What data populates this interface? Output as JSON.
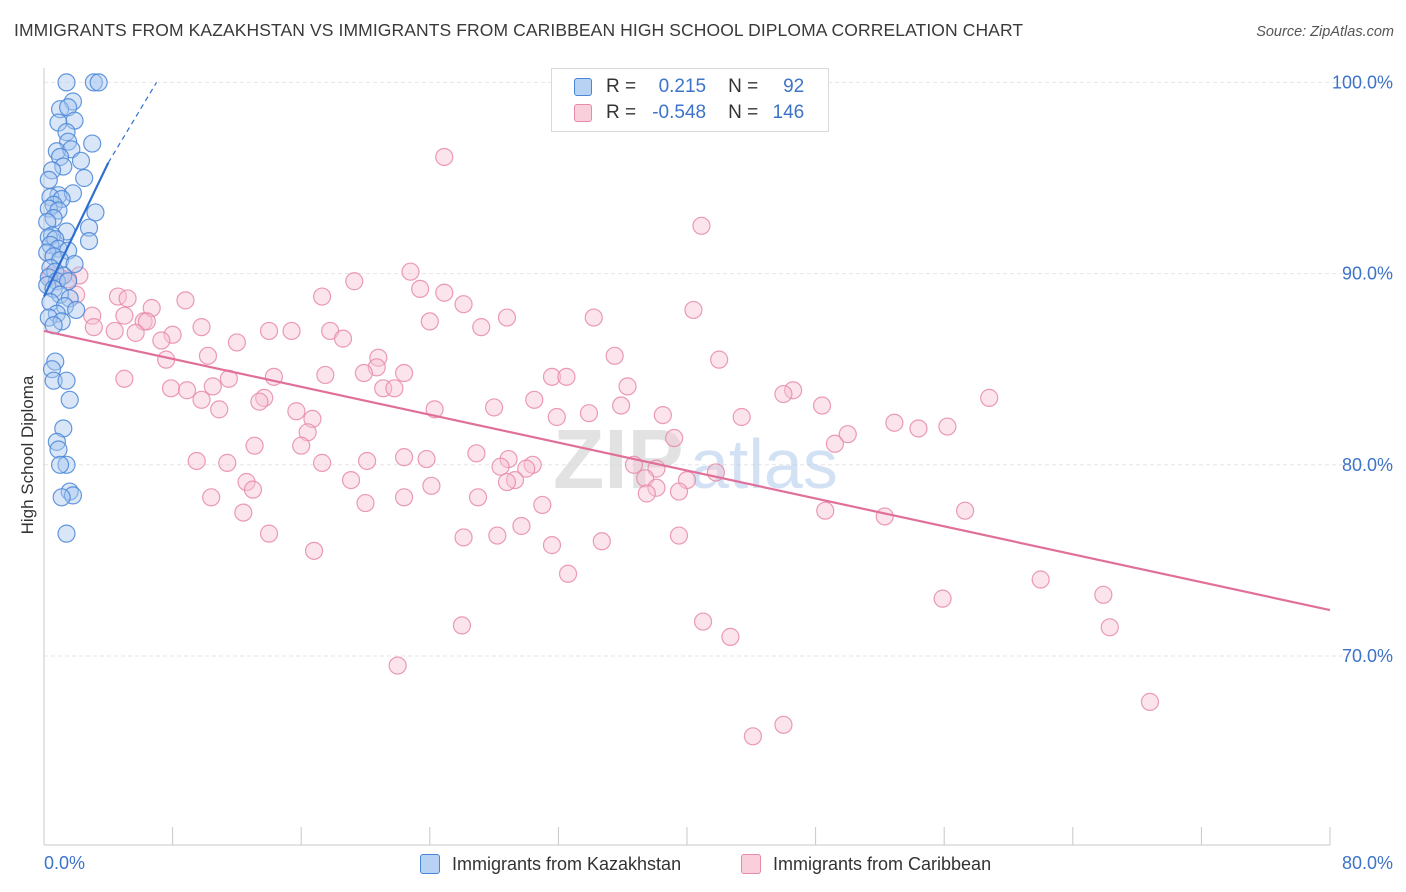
{
  "header": {
    "title": "IMMIGRANTS FROM KAZAKHSTAN VS IMMIGRANTS FROM CARIBBEAN HIGH SCHOOL DIPLOMA CORRELATION CHART",
    "source": "Source: ZipAtlas.com"
  },
  "legend": {
    "rows": [
      {
        "r_label": "R =",
        "r_value": "0.215",
        "n_label": "N =",
        "n_value": "92"
      },
      {
        "r_label": "R =",
        "r_value": "-0.548",
        "n_label": "N =",
        "n_value": "146"
      }
    ]
  },
  "watermark": {
    "zip": "ZIP",
    "atlas": "atlas"
  },
  "colors": {
    "blue_fill": "#a9c8ef",
    "blue_stroke": "#4a86d8",
    "blue_line": "#2f6fd0",
    "pink_fill": "#f7c4d4",
    "pink_stroke": "#e88aa8",
    "pink_line": "#e0709a",
    "tick_label": "#3d73c9",
    "grid": "#e6e6e6"
  },
  "chart_data": {
    "type": "scatter",
    "title": "IMMIGRANTS FROM KAZAKHSTAN VS IMMIGRANTS FROM CARIBBEAN HIGH SCHOOL DIPLOMA CORRELATION CHART",
    "xlabel": "",
    "ylabel": "High School Diploma",
    "xlim": [
      0,
      80
    ],
    "ylim": [
      60,
      100
    ],
    "x_tick_labels": [
      "0.0%",
      "80.0%"
    ],
    "y_ticks": [
      70,
      80,
      90,
      100
    ],
    "y_tick_labels": [
      "70.0%",
      "80.0%",
      "90.0%",
      "100.0%"
    ],
    "grid": true,
    "legend_position": "bottom",
    "series": [
      {
        "name": "Immigrants from Kazakhstan",
        "color": "#4a86d8",
        "trend": {
          "x": [
            0.0,
            4.0
          ],
          "y": [
            88.8,
            95.8
          ],
          "dashed_extension": {
            "x": [
              4.0,
              7.0
            ],
            "y": [
              95.8,
              100.0
            ]
          }
        },
        "points": [
          [
            1.4,
            100.0
          ],
          [
            3.1,
            100.0
          ],
          [
            3.4,
            100.0
          ],
          [
            1.8,
            99.0
          ],
          [
            1.0,
            98.6
          ],
          [
            1.5,
            98.7
          ],
          [
            0.9,
            97.9
          ],
          [
            1.9,
            98.0
          ],
          [
            1.4,
            97.4
          ],
          [
            1.5,
            96.9
          ],
          [
            3.0,
            96.8
          ],
          [
            0.8,
            96.4
          ],
          [
            1.7,
            96.5
          ],
          [
            1.0,
            96.1
          ],
          [
            2.3,
            95.9
          ],
          [
            1.2,
            95.6
          ],
          [
            0.5,
            95.4
          ],
          [
            2.5,
            95.0
          ],
          [
            0.3,
            94.9
          ],
          [
            0.9,
            94.1
          ],
          [
            1.8,
            94.2
          ],
          [
            0.4,
            94.0
          ],
          [
            1.1,
            93.9
          ],
          [
            0.6,
            93.6
          ],
          [
            0.3,
            93.4
          ],
          [
            0.9,
            93.3
          ],
          [
            3.2,
            93.2
          ],
          [
            0.6,
            92.9
          ],
          [
            0.2,
            92.7
          ],
          [
            2.8,
            92.4
          ],
          [
            1.4,
            92.2
          ],
          [
            0.5,
            92.0
          ],
          [
            0.3,
            91.9
          ],
          [
            0.7,
            91.8
          ],
          [
            2.8,
            91.7
          ],
          [
            0.4,
            91.5
          ],
          [
            0.9,
            91.3
          ],
          [
            1.5,
            91.2
          ],
          [
            0.2,
            91.1
          ],
          [
            0.6,
            90.9
          ],
          [
            1.0,
            90.7
          ],
          [
            1.9,
            90.5
          ],
          [
            0.4,
            90.3
          ],
          [
            0.7,
            90.1
          ],
          [
            1.2,
            89.9
          ],
          [
            0.3,
            89.8
          ],
          [
            0.8,
            89.6
          ],
          [
            1.5,
            89.6
          ],
          [
            0.2,
            89.4
          ],
          [
            0.6,
            89.2
          ],
          [
            1.0,
            88.9
          ],
          [
            1.6,
            88.7
          ],
          [
            0.4,
            88.5
          ],
          [
            1.3,
            88.3
          ],
          [
            2.0,
            88.1
          ],
          [
            0.8,
            87.9
          ],
          [
            0.3,
            87.7
          ],
          [
            1.1,
            87.5
          ],
          [
            0.6,
            87.3
          ],
          [
            0.7,
            85.4
          ],
          [
            0.5,
            85.0
          ],
          [
            0.6,
            84.4
          ],
          [
            1.4,
            84.4
          ],
          [
            1.6,
            83.4
          ],
          [
            1.2,
            81.9
          ],
          [
            0.8,
            81.2
          ],
          [
            0.9,
            80.8
          ],
          [
            1.4,
            80.0
          ],
          [
            1.0,
            80.0
          ],
          [
            1.6,
            78.6
          ],
          [
            1.8,
            78.4
          ],
          [
            1.1,
            78.3
          ],
          [
            1.4,
            76.4
          ]
        ]
      },
      {
        "name": "Immigrants from Caribbean",
        "color": "#e88aa8",
        "trend": {
          "x": [
            0.0,
            80.0
          ],
          "y": [
            87.0,
            72.4
          ]
        },
        "points": [
          [
            24.9,
            96.1
          ],
          [
            40.9,
            92.5
          ],
          [
            0.4,
            89.9
          ],
          [
            1.0,
            89.8
          ],
          [
            2.2,
            89.9
          ],
          [
            1.5,
            89.7
          ],
          [
            2.0,
            88.9
          ],
          [
            22.8,
            90.1
          ],
          [
            19.3,
            89.6
          ],
          [
            23.4,
            89.2
          ],
          [
            24.9,
            89.0
          ],
          [
            17.3,
            88.8
          ],
          [
            4.6,
            88.8
          ],
          [
            5.2,
            88.7
          ],
          [
            8.8,
            88.6
          ],
          [
            26.1,
            88.4
          ],
          [
            6.7,
            88.2
          ],
          [
            40.4,
            88.1
          ],
          [
            5.0,
            87.8
          ],
          [
            3.0,
            87.8
          ],
          [
            28.8,
            87.7
          ],
          [
            34.2,
            87.7
          ],
          [
            6.2,
            87.5
          ],
          [
            6.4,
            87.5
          ],
          [
            24.0,
            87.5
          ],
          [
            3.1,
            87.2
          ],
          [
            9.8,
            87.2
          ],
          [
            15.4,
            87.0
          ],
          [
            4.4,
            87.0
          ],
          [
            27.2,
            87.2
          ],
          [
            14.0,
            87.0
          ],
          [
            17.8,
            87.0
          ],
          [
            5.7,
            86.9
          ],
          [
            8.0,
            86.8
          ],
          [
            7.3,
            86.5
          ],
          [
            18.6,
            86.6
          ],
          [
            12.0,
            86.4
          ],
          [
            10.2,
            85.7
          ],
          [
            35.5,
            85.7
          ],
          [
            42.0,
            85.5
          ],
          [
            20.8,
            85.6
          ],
          [
            7.6,
            85.5
          ],
          [
            20.7,
            85.1
          ],
          [
            19.9,
            84.8
          ],
          [
            22.4,
            84.8
          ],
          [
            17.5,
            84.7
          ],
          [
            31.6,
            84.6
          ],
          [
            32.5,
            84.6
          ],
          [
            14.3,
            84.6
          ],
          [
            11.5,
            84.5
          ],
          [
            5.0,
            84.5
          ],
          [
            36.3,
            84.1
          ],
          [
            21.1,
            84.0
          ],
          [
            10.5,
            84.1
          ],
          [
            21.8,
            84.0
          ],
          [
            7.9,
            84.0
          ],
          [
            8.9,
            83.9
          ],
          [
            46.6,
            83.9
          ],
          [
            46.0,
            83.7
          ],
          [
            13.7,
            83.5
          ],
          [
            9.8,
            83.4
          ],
          [
            13.4,
            83.3
          ],
          [
            58.8,
            83.5
          ],
          [
            30.5,
            83.4
          ],
          [
            35.9,
            83.1
          ],
          [
            48.4,
            83.1
          ],
          [
            28.0,
            83.0
          ],
          [
            24.3,
            82.9
          ],
          [
            15.7,
            82.8
          ],
          [
            10.9,
            82.9
          ],
          [
            33.9,
            82.7
          ],
          [
            38.5,
            82.6
          ],
          [
            43.4,
            82.5
          ],
          [
            31.9,
            82.5
          ],
          [
            16.7,
            82.4
          ],
          [
            52.9,
            82.2
          ],
          [
            56.2,
            82.0
          ],
          [
            54.4,
            81.9
          ],
          [
            16.4,
            81.7
          ],
          [
            50.0,
            81.6
          ],
          [
            39.2,
            81.4
          ],
          [
            49.2,
            81.1
          ],
          [
            16.0,
            81.0
          ],
          [
            13.1,
            81.0
          ],
          [
            26.9,
            80.6
          ],
          [
            22.4,
            80.4
          ],
          [
            23.8,
            80.3
          ],
          [
            28.9,
            80.3
          ],
          [
            11.4,
            80.1
          ],
          [
            17.3,
            80.1
          ],
          [
            30.4,
            80.0
          ],
          [
            9.5,
            80.2
          ],
          [
            20.1,
            80.2
          ],
          [
            36.7,
            80.0
          ],
          [
            28.4,
            79.9
          ],
          [
            30.0,
            79.8
          ],
          [
            38.1,
            79.8
          ],
          [
            41.8,
            79.6
          ],
          [
            37.4,
            79.3
          ],
          [
            29.3,
            79.2
          ],
          [
            40.0,
            79.2
          ],
          [
            28.8,
            79.1
          ],
          [
            19.1,
            79.2
          ],
          [
            12.6,
            79.1
          ],
          [
            24.1,
            78.9
          ],
          [
            38.1,
            78.8
          ],
          [
            39.5,
            78.6
          ],
          [
            13.0,
            78.7
          ],
          [
            27.0,
            78.3
          ],
          [
            10.4,
            78.3
          ],
          [
            22.4,
            78.3
          ],
          [
            37.5,
            78.5
          ],
          [
            20.0,
            78.0
          ],
          [
            31.0,
            77.9
          ],
          [
            48.6,
            77.6
          ],
          [
            12.4,
            77.5
          ],
          [
            57.3,
            77.6
          ],
          [
            52.3,
            77.3
          ],
          [
            29.7,
            76.8
          ],
          [
            14.0,
            76.4
          ],
          [
            28.2,
            76.3
          ],
          [
            26.1,
            76.2
          ],
          [
            39.5,
            76.3
          ],
          [
            31.6,
            75.8
          ],
          [
            34.7,
            76.0
          ],
          [
            16.8,
            75.5
          ],
          [
            32.6,
            74.3
          ],
          [
            62.0,
            74.0
          ],
          [
            65.9,
            73.2
          ],
          [
            55.9,
            73.0
          ],
          [
            41.0,
            71.8
          ],
          [
            26.0,
            71.6
          ],
          [
            66.3,
            71.5
          ],
          [
            42.7,
            71.0
          ],
          [
            22.0,
            69.5
          ],
          [
            68.8,
            67.6
          ],
          [
            46.0,
            66.4
          ],
          [
            44.1,
            65.8
          ]
        ]
      }
    ]
  }
}
